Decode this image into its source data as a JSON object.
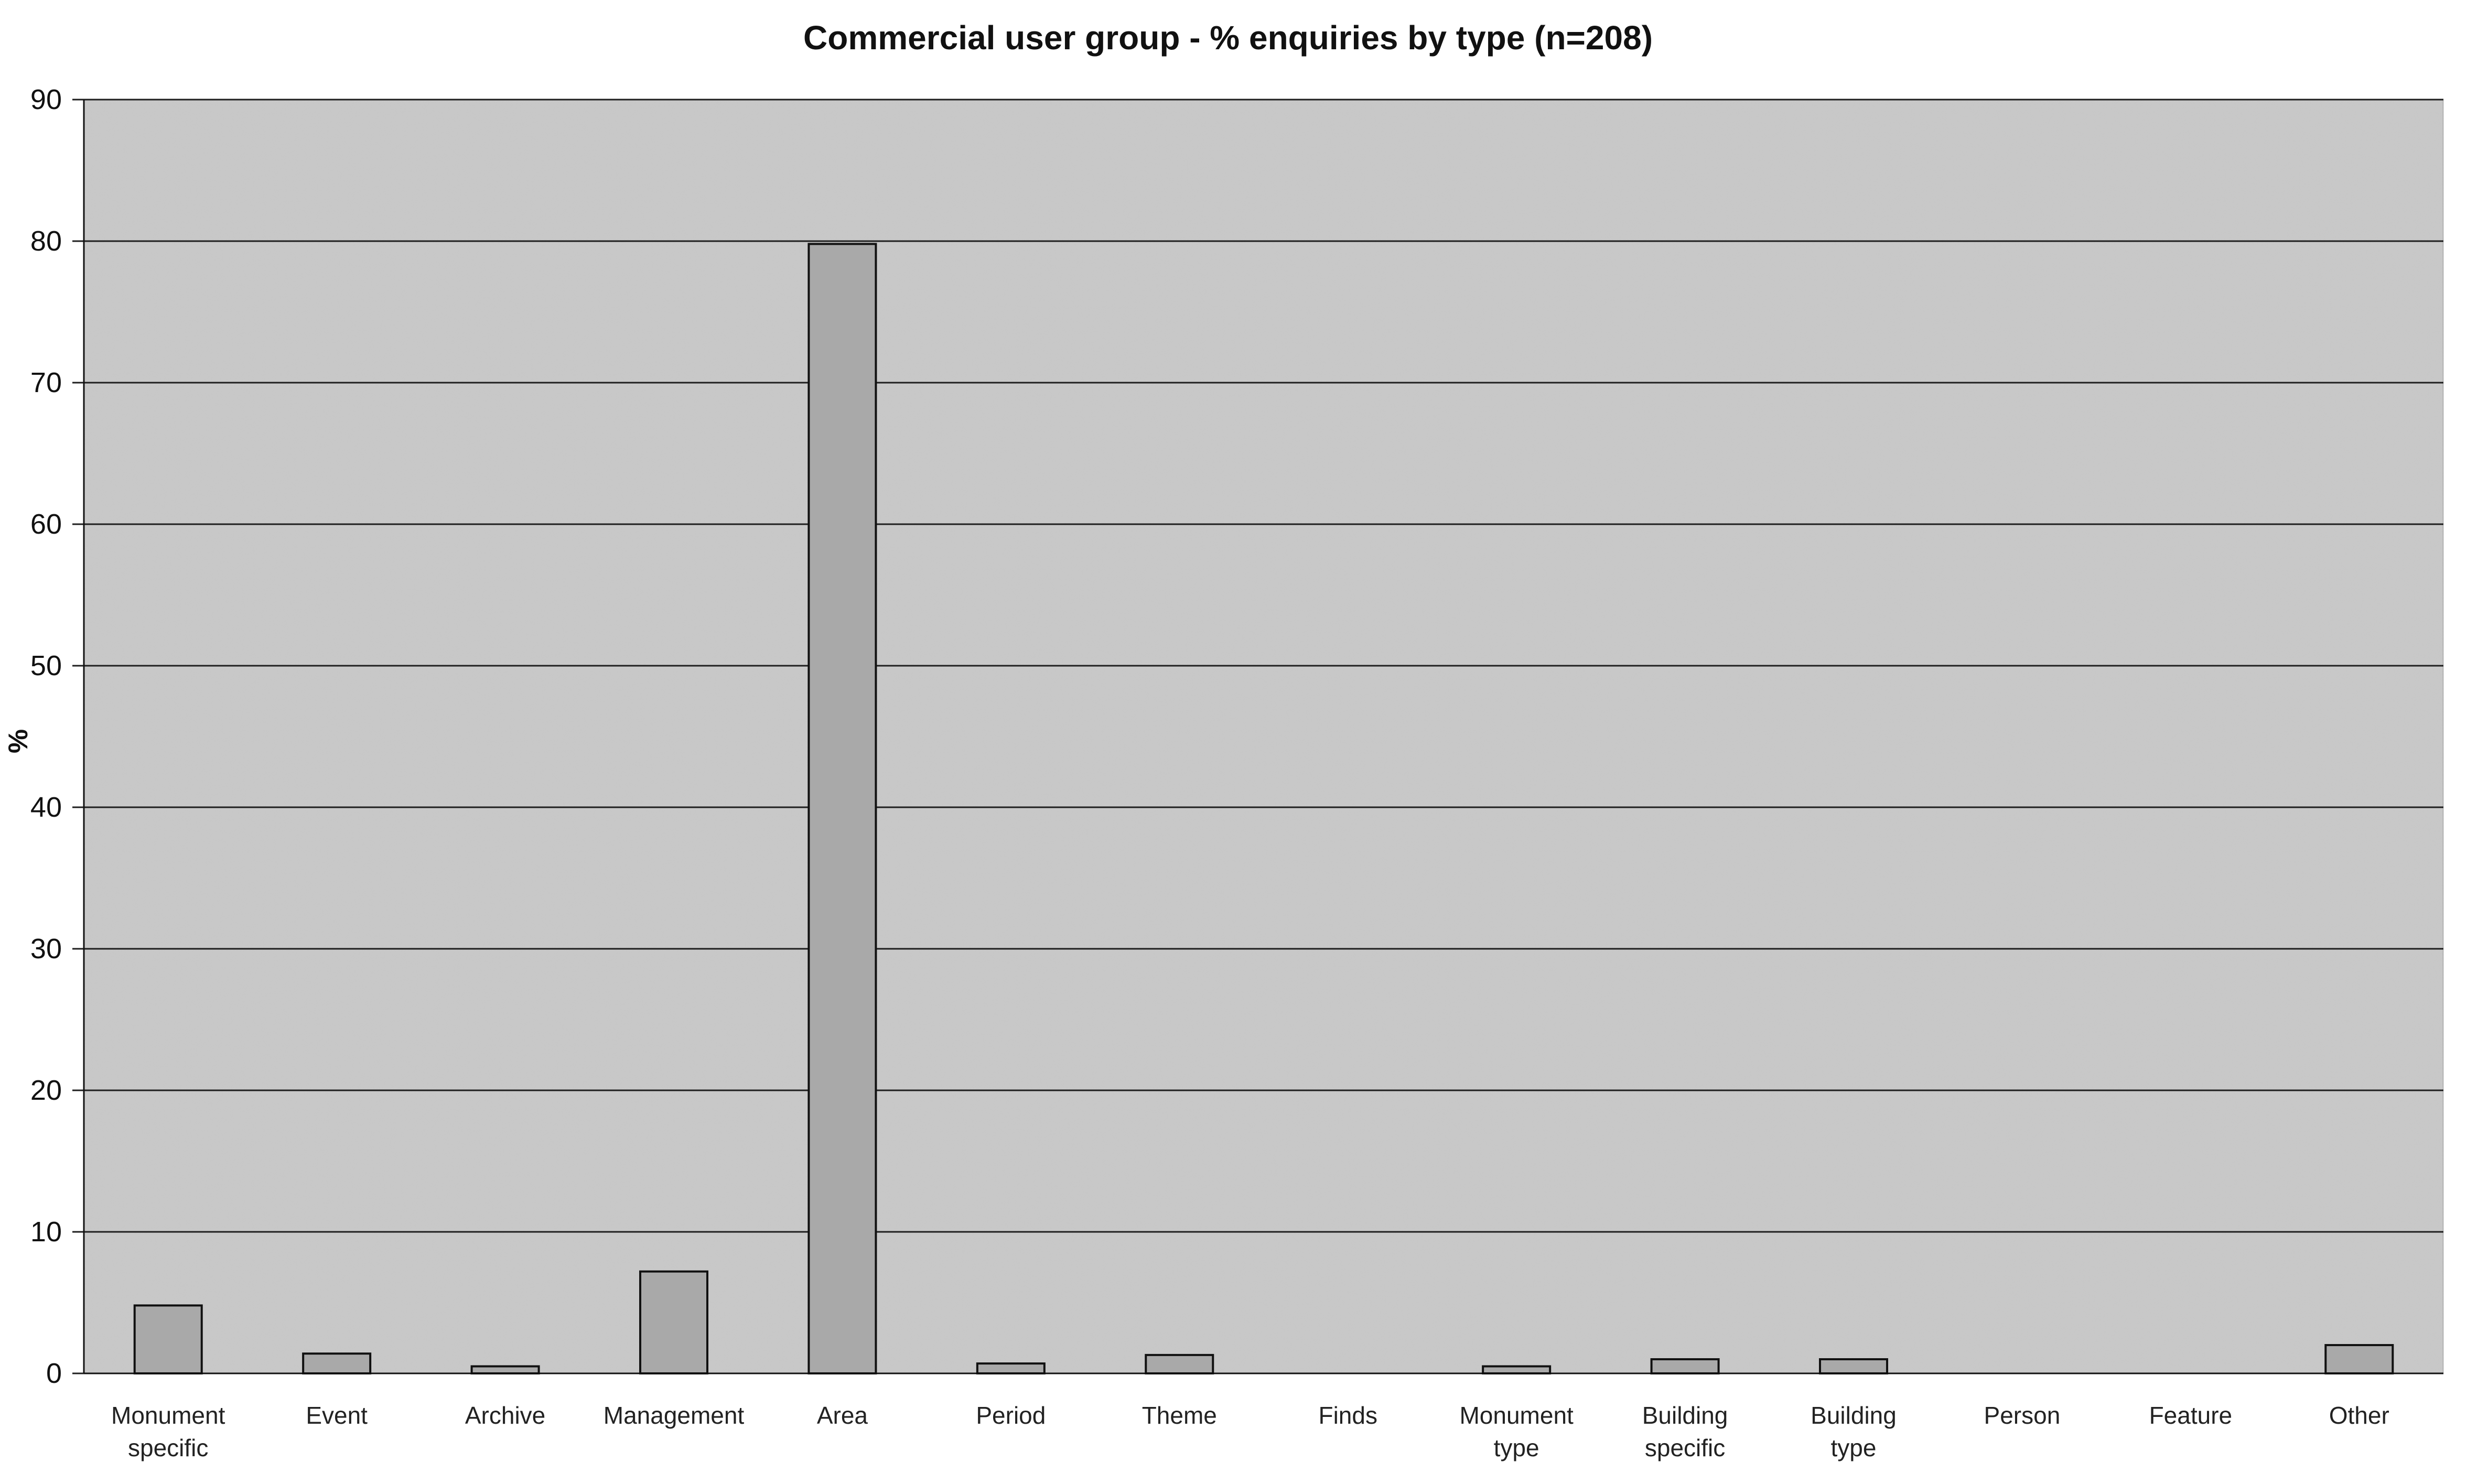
{
  "chart_data": {
    "type": "bar",
    "title": "Commercial user group - % enquiries by type (n=208)",
    "xlabel": "",
    "ylabel": "%",
    "ylim": [
      0,
      90
    ],
    "yticks": [
      0,
      10,
      20,
      30,
      40,
      50,
      60,
      70,
      80,
      90
    ],
    "grid": true,
    "legend": "none",
    "categories": [
      [
        "Monument",
        "specific"
      ],
      [
        "Event"
      ],
      [
        "Archive"
      ],
      [
        "Management"
      ],
      [
        "Area"
      ],
      [
        "Period"
      ],
      [
        "Theme"
      ],
      [
        "Finds"
      ],
      [
        "Monument",
        "type"
      ],
      [
        "Building",
        "specific"
      ],
      [
        "Building",
        "type"
      ],
      [
        "Person"
      ],
      [
        "Feature"
      ],
      [
        "Other"
      ]
    ],
    "values": [
      4.8,
      1.4,
      0.5,
      7.2,
      79.8,
      0.7,
      1.3,
      0,
      0.5,
      1.0,
      1.0,
      0,
      0,
      2.0
    ],
    "colors": {
      "plot_background": "#c9c9c9",
      "bar_fill": "#a9a9a9",
      "bar_stroke": "#111111",
      "gridline": "#1e1e1e"
    }
  }
}
